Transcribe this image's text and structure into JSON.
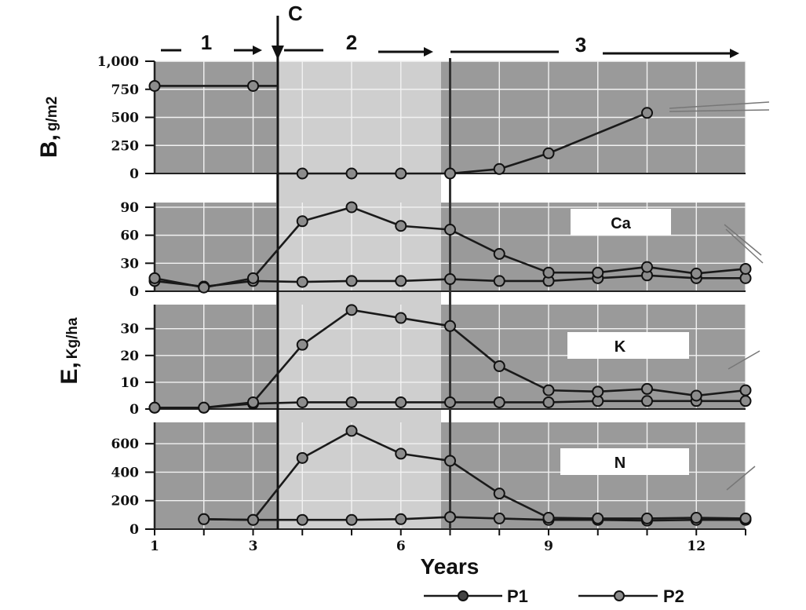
{
  "chart_data": {
    "type": "line",
    "xlabel": "Years",
    "xlim": [
      1,
      13
    ],
    "x_ticks": [
      {
        "value": 1,
        "label": "1"
      },
      {
        "value": 3,
        "label": "3"
      },
      {
        "value": 6,
        "label": "6"
      },
      {
        "value": 9,
        "label": "9"
      },
      {
        "value": 12,
        "label": "12"
      }
    ],
    "marker_event": {
      "label": "C",
      "x": 3.5
    },
    "phase_divider_x": 7,
    "phases": [
      {
        "label": "1",
        "from": 1,
        "to": 3.5
      },
      {
        "label": "2",
        "from": 3.5,
        "to": 7
      },
      {
        "label": "3",
        "from": 7,
        "to": 13
      }
    ],
    "group_ylabels": [
      {
        "main": "B,",
        "sub": "g/m2",
        "panels": [
          "B"
        ]
      },
      {
        "main": "E,",
        "sub": "Kg/ha",
        "panels": [
          "Ca",
          "K",
          "N"
        ]
      }
    ],
    "panels": [
      {
        "id": "B",
        "tag": "",
        "ylim": [
          0,
          1000
        ],
        "y_ticks": [
          {
            "value": 0,
            "label": "0"
          },
          {
            "value": 250,
            "label": "250"
          },
          {
            "value": 500,
            "label": "500"
          },
          {
            "value": 750,
            "label": "750"
          },
          {
            "value": 1000,
            "label": "1,000"
          }
        ],
        "series": [
          {
            "name": "B",
            "step": true,
            "x": [
              1,
              3,
              3.5,
              3.5,
              4,
              5,
              6,
              7,
              8,
              9,
              11
            ],
            "y": [
              780,
              780,
              780,
              0,
              0,
              0,
              0,
              0,
              40,
              180,
              540
            ],
            "markers": [
              0,
              1,
              4,
              5,
              6,
              7,
              8,
              9,
              10
            ]
          }
        ]
      },
      {
        "id": "Ca",
        "tag": "Ca",
        "ylim": [
          0,
          95
        ],
        "y_ticks": [
          {
            "value": 0,
            "label": "0"
          },
          {
            "value": 30,
            "label": "30"
          },
          {
            "value": 60,
            "label": "60"
          },
          {
            "value": 90,
            "label": "90"
          }
        ],
        "series": [
          {
            "name": "P1",
            "x": [
              1,
              2,
              3,
              4,
              5,
              6,
              7,
              8,
              9,
              10,
              11,
              12,
              13
            ],
            "y": [
              11,
              5,
              11,
              10,
              11,
              11,
              13,
              11,
              11,
              14,
              17,
              14,
              14
            ]
          },
          {
            "name": "P2",
            "x": [
              1,
              2,
              3,
              4,
              5,
              6,
              7,
              8,
              9,
              10,
              11,
              12,
              13
            ],
            "y": [
              14,
              4,
              14,
              75,
              90,
              70,
              66,
              40,
              20,
              20,
              26,
              19,
              24
            ]
          }
        ]
      },
      {
        "id": "K",
        "tag": "K",
        "ylim": [
          0,
          39
        ],
        "y_ticks": [
          {
            "value": 0,
            "label": "0"
          },
          {
            "value": 10,
            "label": "10"
          },
          {
            "value": 20,
            "label": "20"
          },
          {
            "value": 30,
            "label": "30"
          }
        ],
        "series": [
          {
            "name": "P1",
            "x": [
              1,
              2,
              3,
              4,
              5,
              6,
              7,
              8,
              9,
              10,
              11,
              12,
              13
            ],
            "y": [
              0.5,
              0.5,
              2,
              2.5,
              2.5,
              2.5,
              2.5,
              2.5,
              2.5,
              3,
              3,
              3,
              3
            ]
          },
          {
            "name": "P2",
            "x": [
              1,
              2,
              3,
              4,
              5,
              6,
              7,
              8,
              9,
              10,
              11,
              12,
              13
            ],
            "y": [
              0.5,
              0.5,
              2.5,
              24,
              37,
              34,
              31,
              16,
              7,
              6.5,
              7.5,
              5,
              7
            ]
          }
        ]
      },
      {
        "id": "N",
        "tag": "N",
        "ylim": [
          0,
          750
        ],
        "y_ticks": [
          {
            "value": 0,
            "label": "0"
          },
          {
            "value": 200,
            "label": "200"
          },
          {
            "value": 400,
            "label": "400"
          },
          {
            "value": 600,
            "label": "600"
          }
        ],
        "series": [
          {
            "name": "P1",
            "x": [
              2,
              3,
              4,
              5,
              6,
              7,
              8,
              9,
              10,
              11,
              12,
              13
            ],
            "y": [
              70,
              65,
              65,
              65,
              70,
              85,
              75,
              65,
              65,
              60,
              65,
              65
            ]
          },
          {
            "name": "P2",
            "x": [
              2,
              3,
              4,
              5,
              6,
              7,
              8,
              9,
              10,
              11,
              12,
              13
            ],
            "y": [
              70,
              65,
              500,
              690,
              530,
              480,
              250,
              80,
              75,
              75,
              80,
              75
            ]
          }
        ]
      }
    ],
    "legend": [
      {
        "name": "P1",
        "label": "P1"
      },
      {
        "name": "P2",
        "label": "P2"
      }
    ],
    "colors": {
      "panel_bg": "#9a9a9a",
      "phase2_bg": "#cfcfcf",
      "grid": "#f2f2f2",
      "line": "#1a1a1a",
      "marker_fill": "#8c8c8c",
      "tag_bg": "#ffffff"
    }
  }
}
